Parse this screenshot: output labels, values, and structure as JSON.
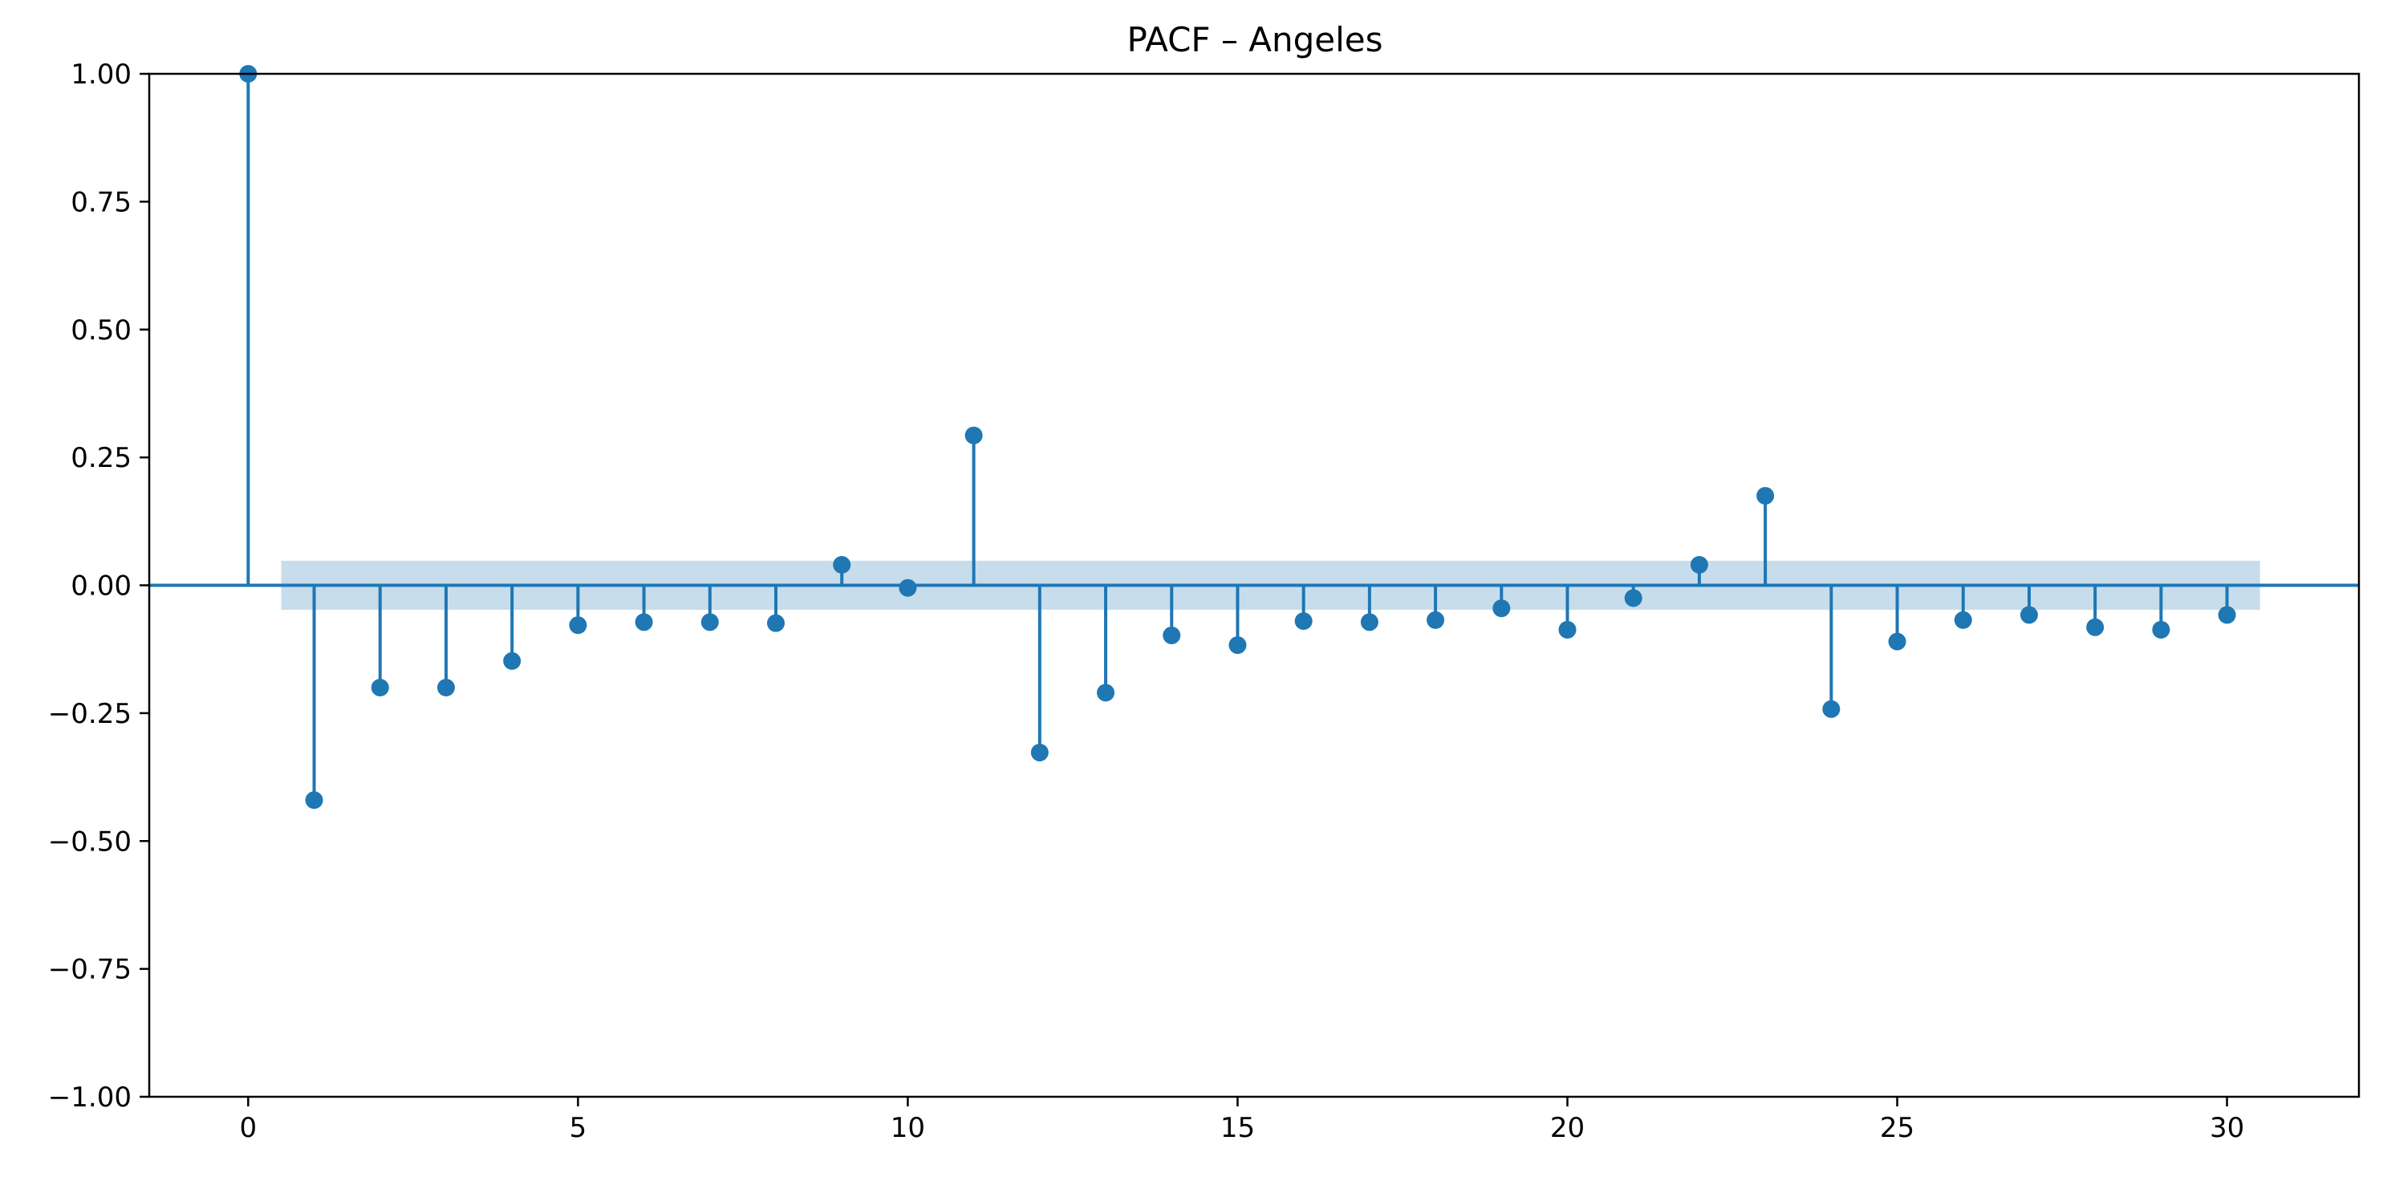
{
  "chart_data": {
    "type": "stem",
    "title": "PACF – Angeles",
    "xlabel": "",
    "ylabel": "",
    "xlim": [
      -1.5,
      32
    ],
    "ylim": [
      -1.0,
      1.0
    ],
    "x_ticks": [
      0,
      5,
      10,
      15,
      20,
      25,
      30
    ],
    "x_tick_labels": [
      "0",
      "5",
      "10",
      "15",
      "20",
      "25",
      "30"
    ],
    "y_ticks": [
      1.0,
      0.75,
      0.5,
      0.25,
      0.0,
      -0.25,
      -0.5,
      -0.75,
      -1.0
    ],
    "y_tick_labels": [
      "1.00",
      "0.75",
      "0.50",
      "0.25",
      "0.00",
      "−0.25",
      "−0.50",
      "−0.75",
      "−1.00"
    ],
    "lags": [
      0,
      1,
      2,
      3,
      4,
      5,
      6,
      7,
      8,
      9,
      10,
      11,
      12,
      13,
      14,
      15,
      16,
      17,
      18,
      19,
      20,
      21,
      22,
      23,
      24,
      25,
      26,
      27,
      28,
      29,
      30
    ],
    "values": [
      1.0,
      -0.42,
      -0.2,
      -0.2,
      -0.148,
      -0.078,
      -0.072,
      -0.072,
      -0.074,
      0.04,
      -0.005,
      0.293,
      -0.327,
      -0.21,
      -0.098,
      -0.117,
      -0.07,
      -0.072,
      -0.068,
      -0.045,
      -0.087,
      -0.025,
      0.04,
      0.175,
      -0.242,
      -0.11,
      -0.068,
      -0.058,
      -0.082,
      -0.087,
      -0.058
    ],
    "confidence_interval": {
      "lag_start": 0.5,
      "lag_end": 30.5,
      "lower": -0.048,
      "upper": 0.048
    },
    "grid": false,
    "colors": {
      "series": "#1f77b4",
      "band": "#1f77b4"
    }
  }
}
